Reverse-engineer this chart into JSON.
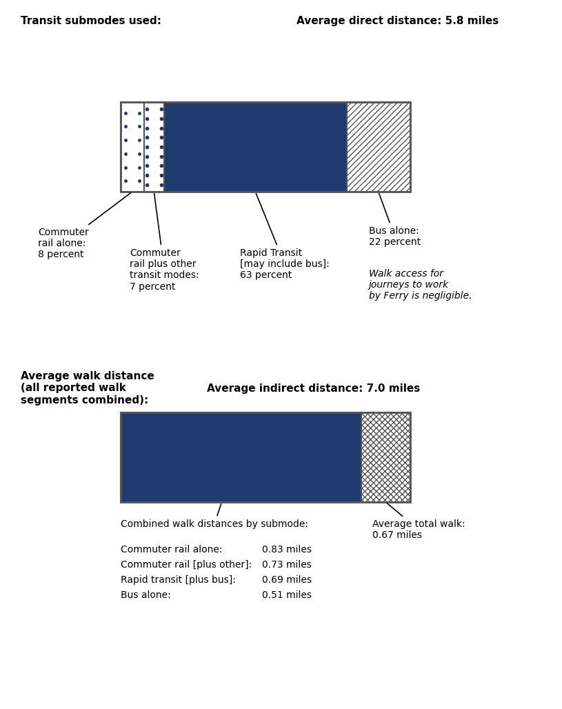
{
  "panel1": {
    "title_left": "Transit submodes used:",
    "title_right": "Average direct distance: 5.8 miles",
    "segments": [
      {
        "label": "commuter_rail_alone",
        "pct": 8,
        "pattern": "dots_sparse",
        "color": "#ffffff"
      },
      {
        "label": "commuter_rail_plus",
        "pct": 7,
        "pattern": "dots_dense",
        "color": "#ffffff"
      },
      {
        "label": "rapid_transit",
        "pct": 63,
        "pattern": "solid",
        "color": "#1e3a6e"
      },
      {
        "label": "bus_alone",
        "pct": 22,
        "pattern": "hatch_diagonal",
        "color": "#ffffff"
      }
    ],
    "ferry_note": "Walk access for\njourneys to work\nby Ferry is negligible."
  },
  "panel2": {
    "title_left": "Average walk distance\n(all reported walk\nsegments combined):",
    "title_right": "Average indirect distance: 7.0 miles",
    "solid_pct": 83,
    "hatch_pct": 17,
    "walk_data": [
      {
        "label": "Commuter rail alone:",
        "value": "0.83 miles"
      },
      {
        "label": "Commuter rail [plus other]:",
        "value": "0.73 miles"
      },
      {
        "label": "Rapid transit [plus bus]:",
        "value": "0.69 miles"
      },
      {
        "label": "Bus alone:",
        "value": "0.51 miles"
      }
    ],
    "avg_total_label": "Average total walk:\n0.67 miles"
  },
  "dark_blue": "#1e3a6e",
  "border_color": "#555555",
  "text_color": "#000000",
  "bg_color": "#ffffff"
}
